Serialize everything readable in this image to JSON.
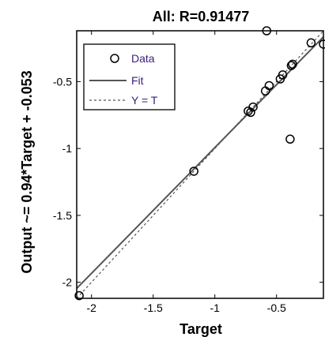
{
  "chart_data": {
    "type": "scatter",
    "title": "All: R=0.91477",
    "xlabel": "Target",
    "ylabel": "Output ~= 0.94*Target + -0.053",
    "xlim": [
      -2.12,
      -0.12
    ],
    "ylim": [
      -2.12,
      -0.12
    ],
    "xticks": [
      -2,
      -1.5,
      -1,
      -0.5
    ],
    "yticks": [
      -2,
      -1.5,
      -1,
      -0.5
    ],
    "xtick_labels": [
      "-2",
      "-1.5",
      "-1",
      "-0.5"
    ],
    "ytick_labels": [
      "-2",
      "-1.5",
      "-1",
      "-0.5"
    ],
    "grid": false,
    "legend_position": "top-left",
    "fit": {
      "slope": 0.94,
      "intercept": -0.053
    },
    "series": [
      {
        "name": "Data",
        "marker": "circle",
        "color": "#000000",
        "points": [
          [
            -2.1,
            -2.1
          ],
          [
            -1.17,
            -1.17
          ],
          [
            -0.73,
            -0.72
          ],
          [
            -0.71,
            -0.73
          ],
          [
            -0.69,
            -0.69
          ],
          [
            -0.59,
            -0.57
          ],
          [
            -0.56,
            -0.53
          ],
          [
            -0.47,
            -0.48
          ],
          [
            -0.45,
            -0.45
          ],
          [
            -0.38,
            -0.38
          ],
          [
            -0.37,
            -0.37
          ],
          [
            -0.39,
            -0.93
          ],
          [
            -0.58,
            -0.12
          ],
          [
            -0.22,
            -0.21
          ],
          [
            -0.12,
            -0.22
          ]
        ]
      },
      {
        "name": "Fit",
        "style": "solid",
        "color": "#555555"
      },
      {
        "name": "Y = T",
        "style": "dashed",
        "color": "#555555"
      }
    ],
    "colors": {
      "legend_text": "#3a1f7a",
      "axes": "#000000"
    }
  }
}
